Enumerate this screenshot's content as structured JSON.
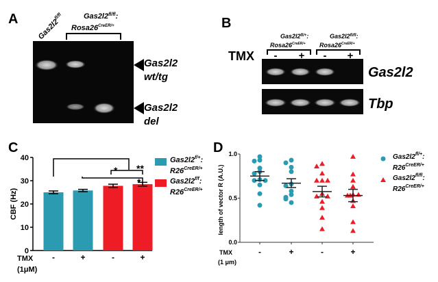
{
  "panel_a": {
    "label": "A",
    "lane1_label": "Gas2l2",
    "lane1_sup": "fl/fl",
    "group_label_1": "Gas2l2",
    "group_label_1_sup": "fl/fl",
    "group_label_1_suffix": ":",
    "group_label_2": "Rosa26",
    "group_label_2_sup": "CreER/+",
    "band_upper_1": "Gas2l2",
    "band_upper_2": "wt/tg",
    "band_lower_1": "Gas2l2",
    "band_lower_2": "del"
  },
  "panel_b": {
    "label": "B",
    "tmx": "TMX",
    "group1_line1": "Gas2l2",
    "group1_sup1": "fl/+",
    "group1_line1_suffix": ":",
    "group1_line2": "Rosa26",
    "group1_sup2": "CreER/+",
    "group2_line1": "Gas2l2",
    "group2_sup1": "fl/fl",
    "group2_line1_suffix": ":",
    "group2_line2": "Rosa26",
    "group2_sup2": "CreER/+",
    "lanes": [
      "-",
      "+",
      "-",
      "+"
    ],
    "gel1_label": "Gas2l2",
    "gel2_label": "Tbp"
  },
  "chart_data": [
    {
      "type": "bar",
      "panel": "C",
      "ylabel": "CBF (Hz)",
      "xlabel_line1": "TMX",
      "xlabel_line2": "(1μM)",
      "ylim": [
        0,
        40
      ],
      "yticks": [
        "0",
        "10",
        "20",
        "30",
        "40"
      ],
      "categories": [
        "-",
        "+",
        "-",
        "+"
      ],
      "values": [
        25.0,
        25.8,
        27.8,
        28.5
      ],
      "errors": [
        0.6,
        0.5,
        0.7,
        0.8
      ],
      "series_index": [
        0,
        0,
        1,
        1
      ],
      "legend": [
        {
          "name": "Gas2l2",
          "sup": "f/+",
          "suffix": ":",
          "line2": "R26",
          "sup2": "CreER/+",
          "color": "#2a9bb0"
        },
        {
          "name": "Gas2l2",
          "sup": "f/f",
          "suffix": ":",
          "line2": "R26",
          "sup2": "CreER/+",
          "color": "#ee1c25"
        }
      ],
      "significance": [
        "*",
        "**",
        "*"
      ]
    },
    {
      "type": "scatter",
      "panel": "D",
      "ylabel": "length of vector R (A.U.)",
      "xlabel_line1": "TMX",
      "xlabel_line2": "(1 μm)",
      "ylim": [
        0,
        1
      ],
      "yticks": [
        "0.0",
        "0.5",
        "1.0"
      ],
      "categories": [
        "-",
        "+",
        "-",
        "+"
      ],
      "series_index": [
        0,
        0,
        1,
        1
      ],
      "groups": [
        [
          0.97,
          0.93,
          0.92,
          0.84,
          0.8,
          0.78,
          0.71,
          0.7,
          0.7,
          0.65,
          0.55,
          0.42
        ],
        [
          0.93,
          0.9,
          0.85,
          0.8,
          0.66,
          0.64,
          0.58,
          0.54,
          0.51,
          0.49,
          0.45
        ],
        [
          0.89,
          0.86,
          0.78,
          0.7,
          0.7,
          0.7,
          0.55,
          0.52,
          0.52,
          0.46,
          0.39,
          0.28,
          0.15
        ],
        [
          0.97,
          0.77,
          0.7,
          0.63,
          0.54,
          0.53,
          0.54,
          0.53,
          0.47,
          0.41,
          0.23,
          0.13
        ]
      ],
      "means": [
        0.75,
        0.67,
        0.575,
        0.53
      ],
      "sem": [
        0.05,
        0.05,
        0.06,
        0.07
      ],
      "legend": [
        {
          "name": "Gas2l2",
          "sup": "fl/+",
          "suffix": ":",
          "line2": "R26",
          "sup2": "CreER/+",
          "color": "#2a9bb0",
          "marker": "circle"
        },
        {
          "name": "Gas2l2",
          "sup": "fl/fl",
          "suffix": ":",
          "line2": "R26",
          "sup2": "CreER/+",
          "color": "#ee1c25",
          "marker": "triangle"
        }
      ]
    }
  ]
}
